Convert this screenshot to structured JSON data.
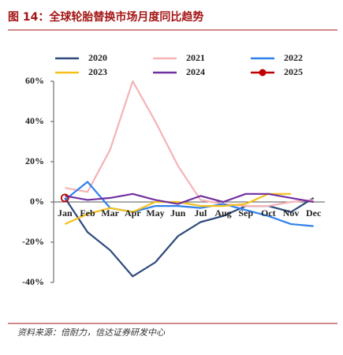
{
  "title": "图 14：全球轮胎替换市场月度同比趋势",
  "source": "资料来源：倍耐力，信达证券研发中心",
  "chart_data": {
    "type": "line",
    "categories": [
      "Jan",
      "Feb",
      "Mar",
      "Apr",
      "May",
      "Jun",
      "Jul",
      "Aug",
      "Sep",
      "Oct",
      "Nov",
      "Dec"
    ],
    "series": [
      {
        "name": "2020",
        "color": "#2e4a7a",
        "values": [
          2,
          -15,
          -24,
          -37,
          -30,
          -17,
          -10,
          -7,
          -2,
          -2,
          -5,
          2
        ]
      },
      {
        "name": "2021",
        "color": "#f5b3b8",
        "values": [
          7,
          5,
          26,
          60,
          40,
          18,
          1,
          -1,
          -2,
          -2,
          0,
          1
        ]
      },
      {
        "name": "2022",
        "color": "#2f80ed",
        "values": [
          1,
          10,
          -3,
          -5,
          -2,
          -2,
          -3,
          -1,
          -4,
          -7,
          -11,
          -12
        ]
      },
      {
        "name": "2023",
        "color": "#f5c01a",
        "values": [
          -11,
          -6,
          -3,
          -5,
          0,
          0,
          -2,
          -2,
          -1,
          4,
          4,
          null
        ]
      },
      {
        "name": "2024",
        "color": "#7030a0",
        "values": [
          3,
          1,
          2,
          4,
          1,
          -1,
          3,
          0,
          4,
          4,
          2,
          0
        ]
      },
      {
        "name": "2025",
        "color": "#c00000",
        "marker": true,
        "values": [
          2,
          null,
          null,
          null,
          null,
          null,
          null,
          null,
          null,
          null,
          null,
          null
        ]
      }
    ],
    "ylim": [
      -40,
      60
    ],
    "yticks": [
      {
        "value": -40,
        "label": "-40%"
      },
      {
        "value": -20,
        "label": "-20%"
      },
      {
        "value": 0,
        "label": "0%"
      },
      {
        "value": 20,
        "label": "20%"
      },
      {
        "value": 40,
        "label": "40%"
      },
      {
        "value": 60,
        "label": "60%"
      }
    ],
    "grid": false
  }
}
